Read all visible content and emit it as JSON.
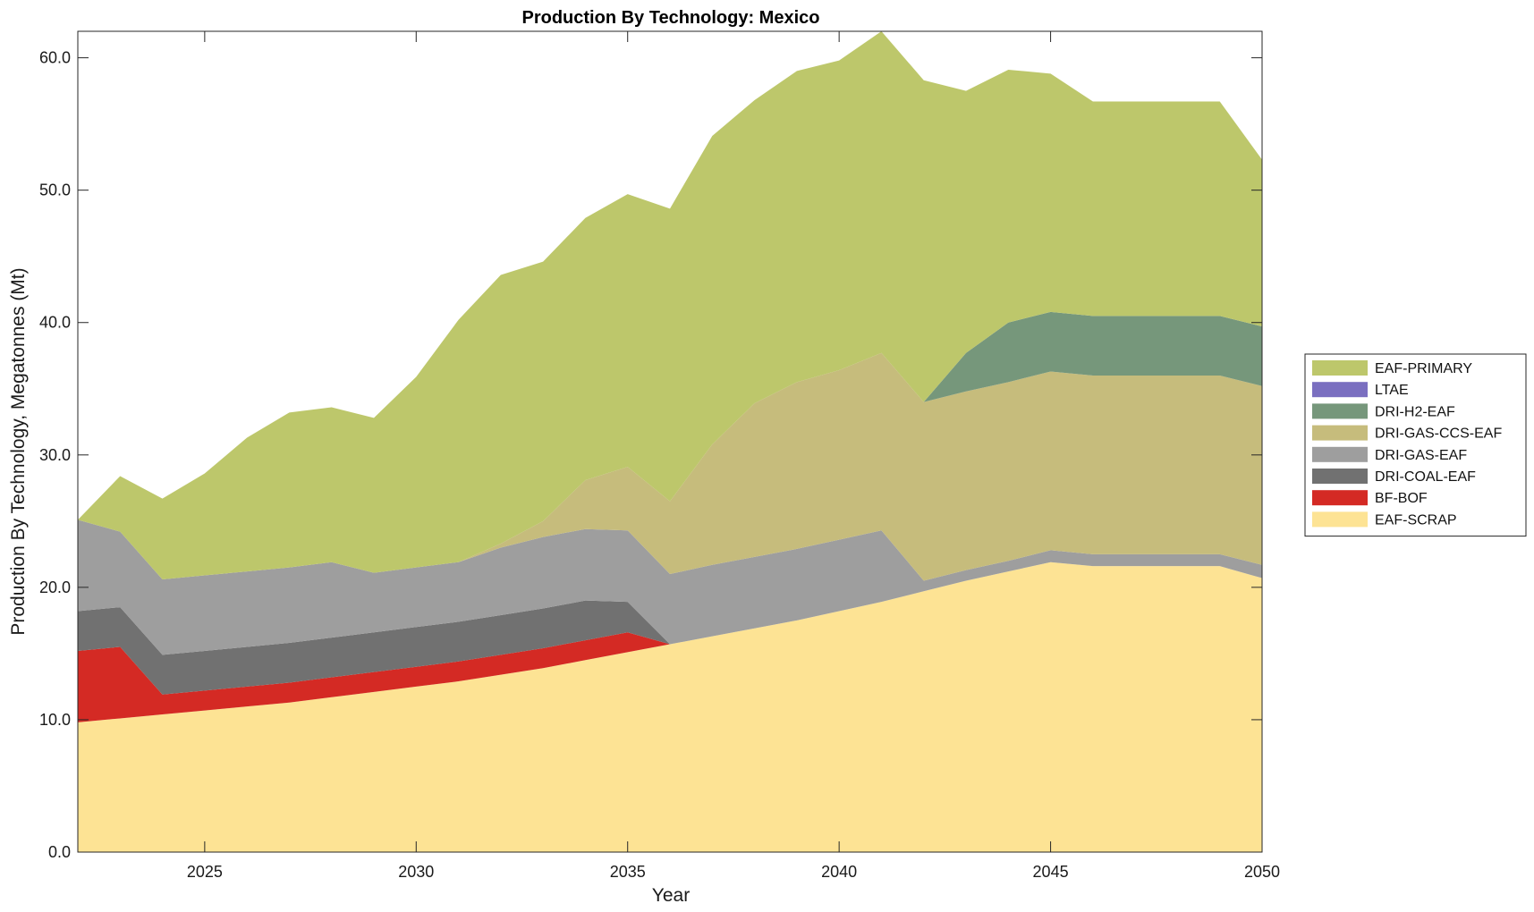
{
  "chart_data": {
    "type": "area",
    "stacked": true,
    "title": "Production By Technology: Mexico",
    "xlabel": "Year",
    "ylabel": "Production By Technology, Megatonnes (Mt)",
    "xlim": [
      2022,
      2050
    ],
    "ylim": [
      0,
      62
    ],
    "xticks": [
      "2025",
      "2030",
      "2035",
      "2040",
      "2045",
      "2050"
    ],
    "yticks": [
      "0.0",
      "10.0",
      "20.0",
      "30.0",
      "40.0",
      "50.0",
      "60.0"
    ],
    "grid": false,
    "legend_position": "right",
    "x": [
      2022,
      2023,
      2024,
      2025,
      2026,
      2027,
      2028,
      2029,
      2030,
      2031,
      2032,
      2033,
      2034,
      2035,
      2036,
      2037,
      2038,
      2039,
      2040,
      2041,
      2042,
      2043,
      2044,
      2045,
      2046,
      2047,
      2048,
      2049,
      2050
    ],
    "series": [
      {
        "name": "EAF-SCRAP",
        "color": "#fde394",
        "values": [
          9.8,
          10.1,
          10.4,
          10.7,
          11.0,
          11.3,
          11.7,
          12.1,
          12.5,
          12.9,
          13.4,
          13.9,
          14.5,
          15.1,
          15.7,
          16.3,
          16.9,
          17.5,
          18.2,
          18.9,
          19.7,
          20.5,
          21.2,
          21.9,
          21.6,
          21.6,
          21.6,
          21.6,
          20.7
        ]
      },
      {
        "name": "BF-BOF",
        "color": "#d42a24",
        "values": [
          5.4,
          5.4,
          1.5,
          1.5,
          1.5,
          1.5,
          1.5,
          1.5,
          1.5,
          1.5,
          1.5,
          1.5,
          1.5,
          1.5,
          0,
          0,
          0,
          0,
          0,
          0,
          0,
          0,
          0,
          0,
          0,
          0,
          0,
          0,
          0
        ]
      },
      {
        "name": "DRI-COAL-EAF",
        "color": "#717171",
        "values": [
          3.0,
          3.0,
          3.0,
          3.0,
          3.0,
          3.0,
          3.0,
          3.0,
          3.0,
          3.0,
          3.0,
          3.0,
          3.0,
          2.3,
          0,
          0,
          0,
          0,
          0,
          0,
          0,
          0,
          0,
          0,
          0,
          0,
          0,
          0,
          0
        ]
      },
      {
        "name": "DRI-GAS-EAF",
        "color": "#9e9e9e",
        "values": [
          6.9,
          5.7,
          5.7,
          5.7,
          5.7,
          5.7,
          5.7,
          4.5,
          4.5,
          4.5,
          5.1,
          5.4,
          5.4,
          5.4,
          5.3,
          5.4,
          5.4,
          5.4,
          5.4,
          5.4,
          0.8,
          0.8,
          0.8,
          0.9,
          0.9,
          0.9,
          0.9,
          0.9,
          1.0
        ]
      },
      {
        "name": "DRI-GAS-CCS-EAF",
        "color": "#c6bc7c",
        "values": [
          0,
          0,
          0,
          0,
          0,
          0,
          0,
          0,
          0,
          0,
          0.3,
          1.2,
          3.7,
          4.8,
          5.5,
          9.1,
          11.6,
          12.6,
          12.8,
          13.4,
          13.5,
          13.5,
          13.5,
          13.5,
          13.5,
          13.5,
          13.5,
          13.5,
          13.5
        ]
      },
      {
        "name": "DRI-H2-EAF",
        "color": "#76977b",
        "values": [
          0,
          0,
          0,
          0,
          0,
          0,
          0,
          0,
          0,
          0,
          0,
          0,
          0,
          0,
          0,
          0,
          0,
          0,
          0,
          0,
          0,
          2.9,
          4.5,
          4.5,
          4.5,
          4.5,
          4.5,
          4.5,
          4.5
        ]
      },
      {
        "name": "LTAE",
        "color": "#7a6fc0",
        "values": [
          0,
          0,
          0,
          0,
          0,
          0,
          0,
          0,
          0,
          0,
          0,
          0,
          0,
          0,
          0,
          0,
          0,
          0,
          0,
          0,
          0,
          0,
          0,
          0,
          0,
          0,
          0,
          0,
          0
        ]
      },
      {
        "name": "EAF-PRIMARY",
        "color": "#bdc76b",
        "values": [
          0,
          4.2,
          6.1,
          7.7,
          10.1,
          11.7,
          11.7,
          11.7,
          14.4,
          18.3,
          20.3,
          19.6,
          19.8,
          20.6,
          22.1,
          23.3,
          22.9,
          23.5,
          23.4,
          24.3,
          24.3,
          19.8,
          19.1,
          18.0,
          16.2,
          16.2,
          16.2,
          16.2,
          12.6
        ]
      }
    ],
    "legend_order": [
      "EAF-PRIMARY",
      "LTAE",
      "DRI-H2-EAF",
      "DRI-GAS-CCS-EAF",
      "DRI-GAS-EAF",
      "DRI-COAL-EAF",
      "BF-BOF",
      "EAF-SCRAP"
    ]
  }
}
